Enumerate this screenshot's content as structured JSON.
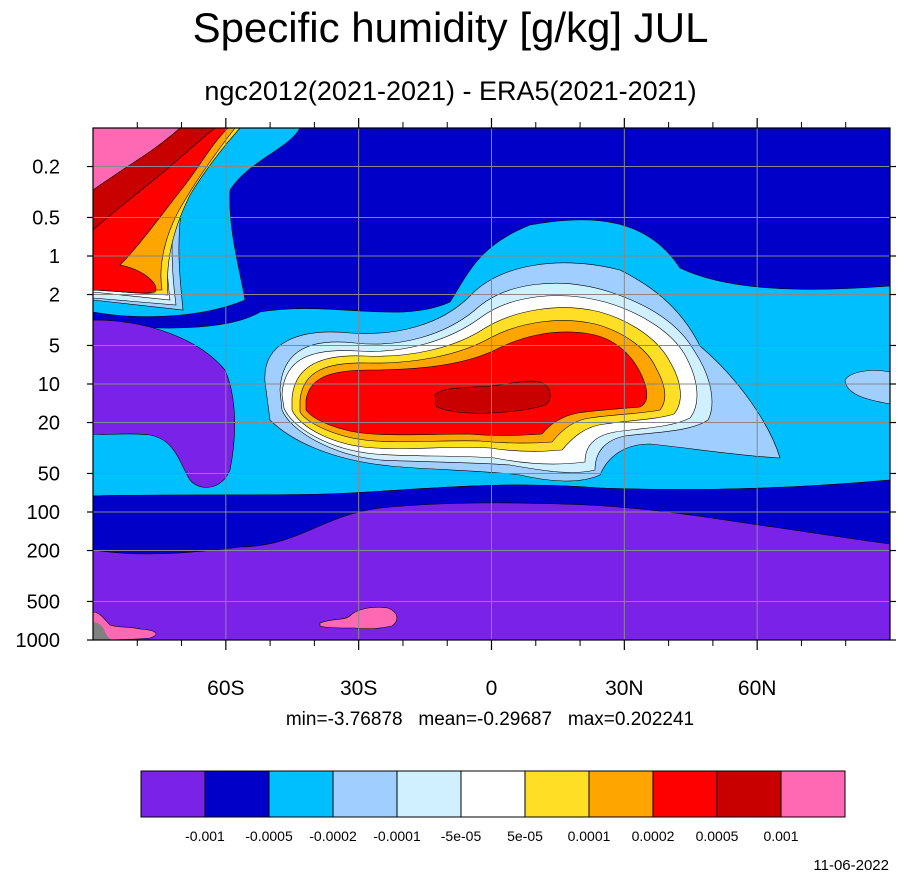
{
  "title": "Specific humidity [g/kg] JUL",
  "subtitle": "ngc2012(2021-2021) - ERA5(2021-2021)",
  "stats": "min=-3.76878   mean=-0.29687   max=0.202241",
  "date": "11-06-2022",
  "colors": {
    "grid": "#888888",
    "land": "#808080",
    "outline": "#000000"
  },
  "chart_data": {
    "type": "heatmap",
    "xlabel": "",
    "ylabel": "",
    "xlim": [
      -90,
      90
    ],
    "x_ticks": [
      {
        "value": -60,
        "label": "60S"
      },
      {
        "value": -30,
        "label": "30S"
      },
      {
        "value": 0,
        "label": "0"
      },
      {
        "value": 30,
        "label": "30N"
      },
      {
        "value": 60,
        "label": "60N"
      }
    ],
    "x_minor_ticks": [
      -80,
      -70,
      -50,
      -40,
      -20,
      -10,
      10,
      20,
      40,
      50,
      70,
      80
    ],
    "y_ticks": [
      {
        "value": 0.2,
        "label": "0.2"
      },
      {
        "value": 0.5,
        "label": "0.5"
      },
      {
        "value": 1,
        "label": "1"
      },
      {
        "value": 2,
        "label": "2"
      },
      {
        "value": 5,
        "label": "5"
      },
      {
        "value": 10,
        "label": "10"
      },
      {
        "value": 20,
        "label": "20"
      },
      {
        "value": 50,
        "label": "50"
      },
      {
        "value": 100,
        "label": "100"
      },
      {
        "value": 200,
        "label": "200"
      },
      {
        "value": 500,
        "label": "500"
      },
      {
        "value": 1000,
        "label": "1000"
      }
    ],
    "colorbar": {
      "colors": [
        "#7b22e8",
        "#0000c8",
        "#00bfff",
        "#a0cfff",
        "#d0f0ff",
        "#ffffff",
        "#ffde26",
        "#ffa500",
        "#ff0000",
        "#c80000",
        "#ff69b4"
      ],
      "labels": [
        "-0.001",
        "-0.0005",
        "-0.0002",
        "-0.0001",
        "-5e-05",
        "5e-05",
        "0.0001",
        "0.0002",
        "0.0005",
        "0.001"
      ]
    }
  }
}
